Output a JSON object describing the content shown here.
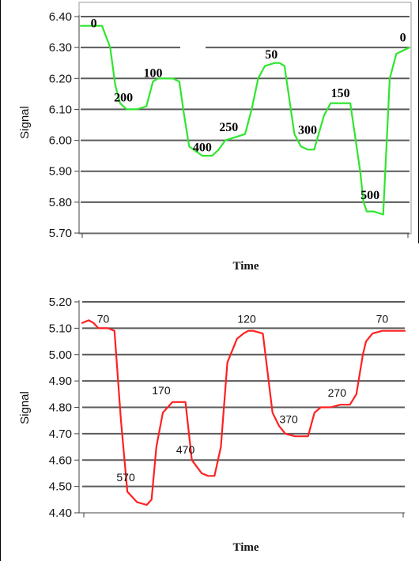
{
  "chart_data": [
    {
      "type": "line",
      "xlabel": "Time",
      "ylabel": "Signal",
      "ylim": [
        5.7,
        6.4
      ],
      "yticks": [
        "5.70",
        "5.80",
        "5.90",
        "6.00",
        "6.10",
        "6.20",
        "6.30",
        "6.40"
      ],
      "xlim": [
        0,
        100
      ],
      "grid": true,
      "series": [
        {
          "color": "#2ee62e",
          "x": [
            0,
            6.5,
            9,
            10.5,
            12,
            14,
            17,
            20,
            22,
            23.5,
            25,
            28,
            30,
            31.5,
            33,
            37,
            40,
            42,
            44,
            47,
            50,
            52,
            54,
            56,
            59,
            60.5,
            62,
            65,
            67,
            69,
            71,
            74,
            76,
            77,
            79,
            82,
            85,
            86,
            87,
            89,
            92,
            94,
            96,
            100
          ],
          "y": [
            6.37,
            6.37,
            6.3,
            6.18,
            6.12,
            6.1,
            6.1,
            6.11,
            6.19,
            6.2,
            6.2,
            6.2,
            6.19,
            6.08,
            5.98,
            5.95,
            5.95,
            5.97,
            6.0,
            6.01,
            6.02,
            6.1,
            6.2,
            6.24,
            6.25,
            6.25,
            6.24,
            6.02,
            5.98,
            5.97,
            5.97,
            6.08,
            6.12,
            6.12,
            6.12,
            6.12,
            5.9,
            5.8,
            5.77,
            5.77,
            5.76,
            6.2,
            6.28,
            6.3
          ]
        }
      ],
      "annotations": [
        {
          "text": "0",
          "x": 4,
          "y": 6.365
        },
        {
          "text": "200",
          "x": 13,
          "y": 6.125
        },
        {
          "text": "100",
          "x": 22,
          "y": 6.205
        },
        {
          "text": "400",
          "x": 37,
          "y": 5.965
        },
        {
          "text": "250",
          "x": 45,
          "y": 6.03
        },
        {
          "text": "50",
          "x": 58,
          "y": 6.265
        },
        {
          "text": "300",
          "x": 69,
          "y": 6.02
        },
        {
          "text": "150",
          "x": 79,
          "y": 6.14
        },
        {
          "text": "500",
          "x": 88,
          "y": 5.81
        },
        {
          "text": "0",
          "x": 98,
          "y": 6.32
        }
      ]
    },
    {
      "type": "line",
      "xlabel": "Time",
      "ylabel": "Signal",
      "ylim": [
        4.4,
        5.2
      ],
      "yticks": [
        "4.40",
        "4.50",
        "4.60",
        "4.70",
        "4.80",
        "4.90",
        "5.00",
        "5.10",
        "5.20"
      ],
      "xlim": [
        0,
        100
      ],
      "grid": true,
      "series": [
        {
          "color": "#ff2020",
          "x": [
            0,
            2,
            3.5,
            5,
            8,
            10,
            12,
            14,
            17,
            20,
            21.5,
            23,
            25,
            28,
            30,
            32,
            34,
            37,
            39,
            41,
            43,
            45,
            48,
            50,
            51.5,
            53,
            56,
            59,
            61,
            63,
            66,
            70,
            72,
            74,
            77,
            80,
            83,
            85,
            87,
            88,
            90,
            93,
            96,
            100
          ],
          "y": [
            5.12,
            5.13,
            5.12,
            5.1,
            5.1,
            5.09,
            4.75,
            4.48,
            4.44,
            4.43,
            4.45,
            4.65,
            4.78,
            4.82,
            4.82,
            4.82,
            4.6,
            4.55,
            4.54,
            4.54,
            4.65,
            4.97,
            5.06,
            5.08,
            5.09,
            5.09,
            5.08,
            4.78,
            4.73,
            4.7,
            4.69,
            4.69,
            4.78,
            4.8,
            4.8,
            4.81,
            4.81,
            4.85,
            5.0,
            5.05,
            5.08,
            5.09,
            5.09,
            5.09
          ]
        }
      ],
      "annotations": [
        {
          "text": "70",
          "x": 6.5,
          "y": 5.12
        },
        {
          "text": "570",
          "x": 13.5,
          "y": 4.52
        },
        {
          "text": "170",
          "x": 24.5,
          "y": 4.85
        },
        {
          "text": "470",
          "x": 32,
          "y": 4.625
        },
        {
          "text": "120",
          "x": 51,
          "y": 5.12
        },
        {
          "text": "370",
          "x": 64,
          "y": 4.74
        },
        {
          "text": "270",
          "x": 79,
          "y": 4.84
        },
        {
          "text": "70",
          "x": 93,
          "y": 5.12
        }
      ]
    }
  ]
}
